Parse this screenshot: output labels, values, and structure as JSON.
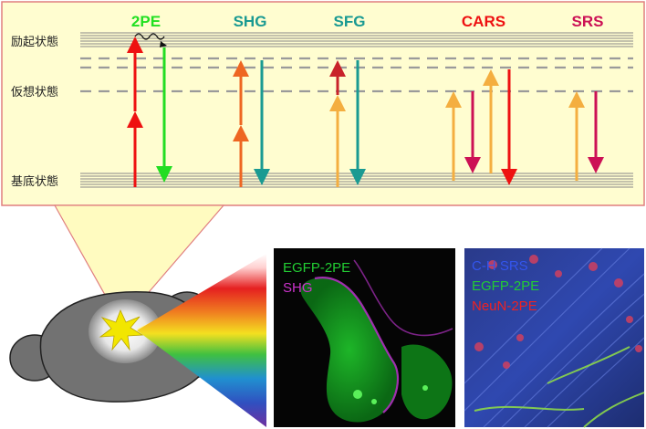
{
  "diagram": {
    "processes": [
      {
        "label": "2PE",
        "color": "#22e022"
      },
      {
        "label": "SHG",
        "color": "#1a9a92"
      },
      {
        "label": "SFG",
        "color": "#1a9a92"
      },
      {
        "label": "CARS",
        "color": "#ee1111"
      },
      {
        "label": "SRS",
        "color": "#cc1155"
      }
    ],
    "levels": {
      "excited": "励起状態",
      "virtual": "仮想状態",
      "ground": "基底状態"
    }
  },
  "micrographs": {
    "left": {
      "labels": [
        {
          "text": "EGFP-2PE",
          "color": "#22cc33"
        },
        {
          "text": "SHG",
          "color": "#cc33cc"
        }
      ]
    },
    "right": {
      "labels": [
        {
          "text": "C-H SRS",
          "color": "#3355ee"
        },
        {
          "text": "EGFP-2PE",
          "color": "#22cc33"
        },
        {
          "text": "NeuN-2PE",
          "color": "#ee2222"
        }
      ]
    }
  },
  "colors": {
    "panel_bg": "#fffdd0",
    "panel_border": "#e07f7f",
    "level_line": "#777777",
    "red": "#ee1111",
    "green": "#22dd22",
    "orange": "#ee6622",
    "teal": "#1a9a92",
    "yellow": "#f4ae40",
    "darkred": "#c8222a",
    "crimson": "#cc1155"
  }
}
